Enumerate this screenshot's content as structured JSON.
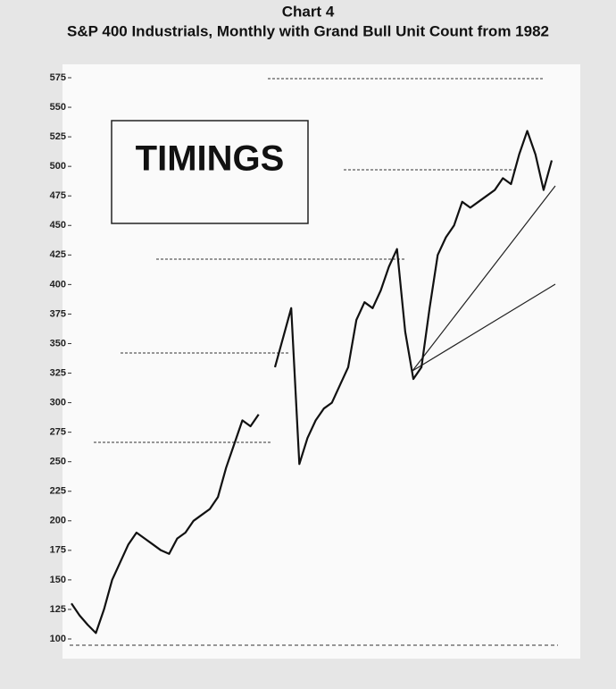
{
  "chart_data": {
    "type": "line",
    "title": "Chart 4",
    "subtitle": "S&P 400 Industrials, Monthly with Grand Bull Unit Count from 1982",
    "logo": "TIMINGS",
    "color": "#111111",
    "values": [
      130,
      120,
      112,
      105,
      125,
      150,
      165,
      180,
      190,
      185,
      180,
      175,
      172,
      185,
      190,
      200,
      205,
      210,
      220,
      245,
      265,
      285,
      280,
      290,
      null,
      330,
      355,
      380,
      248,
      270,
      285,
      295,
      300,
      315,
      330,
      370,
      385,
      380,
      395,
      415,
      430,
      360,
      320,
      330,
      380,
      425,
      440,
      450,
      470,
      465,
      470,
      475,
      480,
      490,
      485,
      510,
      530,
      510,
      480,
      505
    ],
    "ylim": [
      100,
      575
    ],
    "yticks": [
      100,
      125,
      150,
      175,
      200,
      225,
      250,
      275,
      300,
      325,
      350,
      375,
      400,
      425,
      450,
      475,
      500,
      525,
      550,
      575
    ],
    "grid": false
  }
}
